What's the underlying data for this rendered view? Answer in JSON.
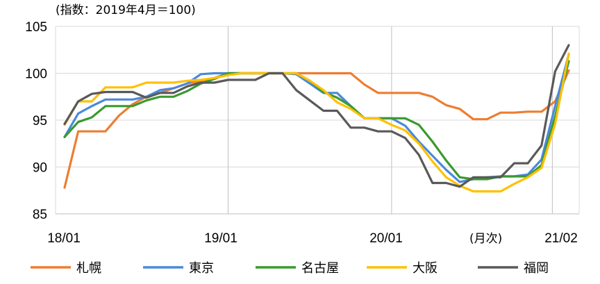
{
  "chart_data": {
    "type": "line",
    "title": "",
    "unit_note": "(指数：2019年4月＝100)",
    "x_unit_note": "(月次)",
    "xlabel": "",
    "ylabel": "",
    "ylim": [
      85,
      105
    ],
    "yticks": [
      85,
      90,
      95,
      100,
      105
    ],
    "x": [
      "18/01",
      "18/02",
      "18/03",
      "18/04",
      "18/05",
      "18/06",
      "18/07",
      "18/08",
      "18/09",
      "18/10",
      "18/11",
      "18/12",
      "19/01",
      "19/02",
      "19/03",
      "19/04",
      "19/05",
      "19/06",
      "19/07",
      "19/08",
      "19/09",
      "19/10",
      "19/11",
      "19/12",
      "20/01",
      "20/02",
      "20/03",
      "20/04",
      "20/05",
      "20/06",
      "20/07",
      "20/08",
      "20/09",
      "20/10",
      "20/11",
      "20/12",
      "21/01",
      "21/02"
    ],
    "xtick_labels": [
      "18/01",
      "19/01",
      "20/01",
      "21/02"
    ],
    "vertical_gridlines_at": [
      "19/01",
      "20/01",
      "21/01"
    ],
    "grid": true,
    "legend_position": "bottom",
    "series": [
      {
        "name": "札幌",
        "color": "#ED7D31",
        "values": [
          87.8,
          93.8,
          93.8,
          93.8,
          95.5,
          96.7,
          97.5,
          97.9,
          98.4,
          98.9,
          99.2,
          99.5,
          100.0,
          100.0,
          100.0,
          100.0,
          100.0,
          100.0,
          100.0,
          100.0,
          100.0,
          100.0,
          98.8,
          97.9,
          97.9,
          97.9,
          97.9,
          97.5,
          96.6,
          96.2,
          95.1,
          95.1,
          95.8,
          95.8,
          95.9,
          95.9,
          97.0,
          100.3
        ]
      },
      {
        "name": "東京",
        "color": "#4A89DC",
        "values": [
          93.2,
          95.7,
          96.5,
          97.2,
          97.2,
          97.2,
          97.5,
          98.2,
          98.4,
          98.9,
          99.9,
          100.0,
          100.0,
          100.0,
          100.0,
          100.0,
          100.0,
          99.9,
          98.9,
          97.9,
          97.9,
          96.5,
          95.2,
          95.2,
          95.2,
          94.4,
          92.7,
          91.2,
          89.7,
          88.4,
          88.7,
          88.9,
          89.0,
          89.0,
          89.2,
          90.8,
          96.5,
          102.0
        ]
      },
      {
        "name": "名古屋",
        "color": "#3A9A2E",
        "values": [
          93.2,
          94.8,
          95.3,
          96.5,
          96.5,
          96.5,
          97.1,
          97.5,
          97.5,
          98.1,
          98.9,
          99.4,
          100.0,
          100.0,
          100.0,
          100.0,
          100.0,
          100.0,
          99.2,
          98.0,
          97.4,
          96.5,
          95.2,
          95.2,
          95.2,
          95.2,
          94.5,
          92.7,
          90.7,
          88.9,
          88.7,
          88.7,
          89.0,
          89.0,
          89.0,
          90.2,
          95.4,
          101.3
        ]
      },
      {
        "name": "大阪",
        "color": "#FFC000",
        "values": [
          94.5,
          97.0,
          97.0,
          98.5,
          98.5,
          98.5,
          99.0,
          99.0,
          99.0,
          99.2,
          99.3,
          99.5,
          99.8,
          100.0,
          100.0,
          100.0,
          100.0,
          100.0,
          99.2,
          98.2,
          96.9,
          96.2,
          95.2,
          95.2,
          94.5,
          93.9,
          92.5,
          90.6,
          88.9,
          88.0,
          87.4,
          87.4,
          87.4,
          88.2,
          88.9,
          89.9,
          94.6,
          102.1
        ]
      },
      {
        "name": "福岡",
        "color": "#595959",
        "values": [
          94.6,
          97.0,
          97.8,
          98.0,
          98.0,
          98.0,
          97.4,
          97.9,
          97.9,
          98.6,
          99.0,
          99.0,
          99.3,
          99.3,
          99.3,
          100.0,
          100.0,
          98.2,
          97.1,
          96.0,
          96.0,
          94.2,
          94.2,
          93.8,
          93.8,
          93.1,
          91.3,
          88.3,
          88.3,
          87.9,
          88.9,
          88.9,
          88.9,
          90.4,
          90.4,
          92.3,
          100.2,
          103.0
        ]
      }
    ]
  }
}
